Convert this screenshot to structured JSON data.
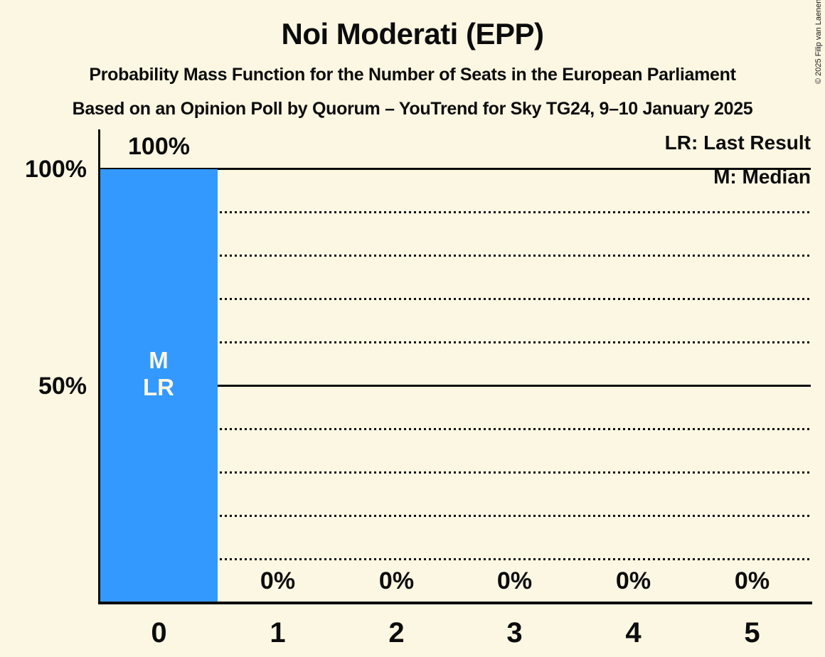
{
  "title": "Noi Moderati (EPP)",
  "subtitle": "Probability Mass Function for the Number of Seats in the European Parliament",
  "poll_info": "Based on an Opinion Poll by Quorum – YouTrend for Sky TG24, 9–10 January 2025",
  "copyright": "© 2025 Filip van Laenen",
  "legend": {
    "last_result": "LR: Last Result",
    "median": "M: Median"
  },
  "y_axis": {
    "tick_100": "100%",
    "tick_50": "50%"
  },
  "bar_annotation": {
    "median": "M",
    "last_result": "LR"
  },
  "colors": {
    "background": "#FBF7E2",
    "bar": "#3399FF",
    "text": "#0C0C0C"
  },
  "chart_data": {
    "type": "bar",
    "title": "Noi Moderati (EPP)",
    "subtitle": "Probability Mass Function for the Number of Seats in the European Parliament",
    "source_line": "Based on an Opinion Poll by Quorum – YouTrend for Sky TG24, 9–10 January 2025",
    "xlabel": "",
    "ylabel": "",
    "categories": [
      "0",
      "1",
      "2",
      "3",
      "4",
      "5"
    ],
    "values": [
      100,
      0,
      0,
      0,
      0,
      0
    ],
    "value_labels": [
      "100%",
      "0%",
      "0%",
      "0%",
      "0%",
      "0%"
    ],
    "ylim": [
      0,
      100
    ],
    "ytick_labels": [
      "100%",
      "50%"
    ],
    "gridlines": {
      "solid_percent": [
        100,
        50
      ],
      "dotted_percent": [
        90,
        80,
        70,
        60,
        40,
        30,
        20,
        10
      ]
    },
    "median_seats": 0,
    "last_result_seats": 0,
    "legend_position": "top-right",
    "legend_entries": [
      "LR: Last Result",
      "M: Median"
    ],
    "bar_color": "#3399FF"
  }
}
